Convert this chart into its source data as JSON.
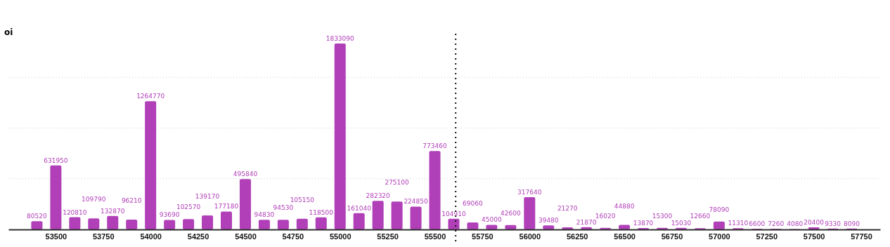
{
  "chart_data": {
    "type": "bar",
    "ylabel": "oi",
    "x": [
      53400,
      53500,
      53600,
      53700,
      53800,
      53900,
      54000,
      54100,
      54200,
      54300,
      54400,
      54500,
      54600,
      54700,
      54800,
      54900,
      55000,
      55100,
      55200,
      55300,
      55400,
      55500,
      55600,
      55700,
      55800,
      55900,
      56000,
      56100,
      56200,
      56300,
      56400,
      56500,
      56600,
      56700,
      56800,
      56900,
      57000,
      57100,
      57200,
      57300,
      57400,
      57500,
      57600,
      57700
    ],
    "values": [
      80520,
      631950,
      120810,
      109790,
      132870,
      96210,
      1264770,
      93690,
      102570,
      139170,
      177180,
      495840,
      94830,
      94530,
      105150,
      118500,
      1833090,
      161040,
      282320,
      275100,
      224850,
      773460,
      104910,
      69060,
      45000,
      42600,
      317640,
      39480,
      21270,
      21870,
      16020,
      44880,
      13870,
      15300,
      15030,
      12660,
      78090,
      11310,
      6600,
      7260,
      4080,
      20400,
      9330,
      8090
    ],
    "color": "#b03fb8",
    "data_labels": true,
    "xlim": [
      53250,
      57850
    ],
    "xticks": [
      53500,
      53750,
      54000,
      54250,
      54500,
      54750,
      55000,
      55250,
      55500,
      55750,
      56000,
      56250,
      56500,
      56750,
      57000,
      57250,
      57500,
      57750
    ],
    "yticks": [
      {
        "value": 500000,
        "label": null
      },
      {
        "value": 1000000,
        "label": null
      },
      {
        "value": 1500000,
        "label": null
      }
    ],
    "grid": "y",
    "tick_labels": "x",
    "ref_lines": [
      {
        "axis": "x",
        "value": 55610,
        "line_style": "dotted",
        "color": "#111111"
      }
    ]
  }
}
